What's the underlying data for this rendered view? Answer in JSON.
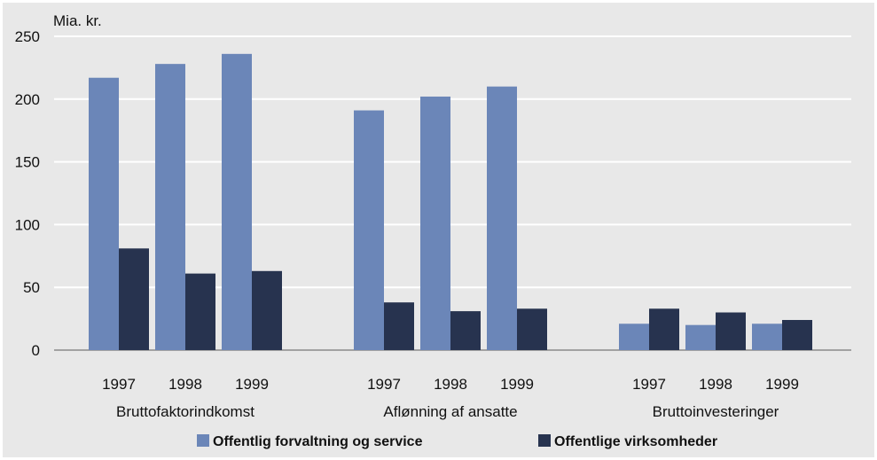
{
  "chart_data": {
    "type": "bar",
    "ylabel": "Mia. kr.",
    "ylim": [
      0,
      250
    ],
    "yticks": [
      0,
      50,
      100,
      150,
      200,
      250
    ],
    "grid": true,
    "legend_position": "bottom",
    "groups": [
      {
        "name": "Bruttofaktorindkomst",
        "categories": [
          "1997",
          "1998",
          "1999"
        ]
      },
      {
        "name": "Aflønning af ansatte",
        "categories": [
          "1997",
          "1998",
          "1999"
        ]
      },
      {
        "name": "Bruttoinvesteringer",
        "categories": [
          "1997",
          "1998",
          "1999"
        ]
      }
    ],
    "series": [
      {
        "name": "Offentlig forvaltning og service",
        "color": "#6b86b8",
        "values": [
          [
            217,
            228,
            236
          ],
          [
            191,
            202,
            210
          ],
          [
            21,
            20,
            21
          ]
        ]
      },
      {
        "name": "Offentlige virksomheder",
        "color": "#27334f",
        "values": [
          [
            81,
            61,
            63
          ],
          [
            38,
            31,
            33
          ],
          [
            33,
            30,
            24
          ]
        ]
      }
    ]
  }
}
